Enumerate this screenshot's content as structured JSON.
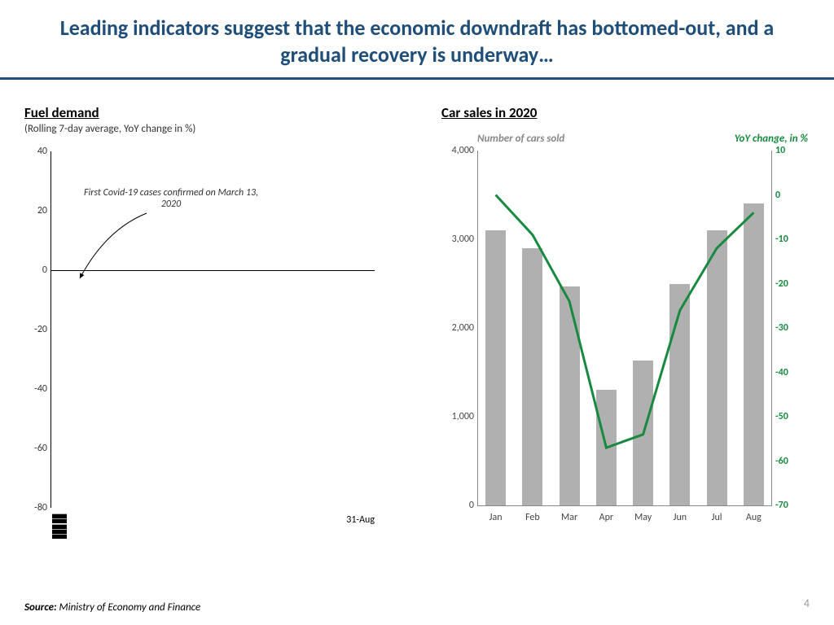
{
  "title": "Leading indicators suggest that the economic downdraft has bottomed-out, and a gradual recovery is underway…",
  "page_number": "4",
  "source_prefix": "Source:",
  "source_text": " Ministry of Economy and Finance",
  "fuel": {
    "title": "Fuel demand",
    "subtitle": "(Rolling 7-day average, YoY change in %)",
    "y_min": -80,
    "y_max": 40,
    "y_step": 20,
    "x_end_label": "31-Aug",
    "annotation": "First Covid-19 cases confirmed on March 13, 2020",
    "annotation_fontsize": 12,
    "axis_color": "#000000"
  },
  "car": {
    "title": "Car sales in 2020",
    "left_axis_label": "Number of cars sold",
    "right_axis_label": "YoY change, in %",
    "left_min": 0,
    "left_max": 4000,
    "left_step": 1000,
    "right_min": -70,
    "right_max": 10,
    "right_step": 10,
    "months": [
      "Jan",
      "Feb",
      "Mar",
      "Apr",
      "May",
      "Jun",
      "Jul",
      "Aug"
    ],
    "bar_values": [
      3100,
      2900,
      2470,
      1300,
      1630,
      2500,
      3100,
      3400
    ],
    "line_values": [
      0,
      -9,
      -24,
      -57,
      -54,
      -26,
      -12,
      -4
    ],
    "bar_color": "#b0b0b0",
    "line_color": "#188a3f",
    "left_label_color": "#888888",
    "axis_color": "#888888",
    "line_width": 3
  }
}
